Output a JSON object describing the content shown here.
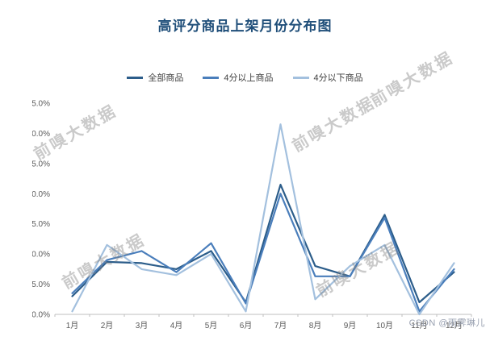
{
  "page": {
    "watermark_text": "前嗅大数据",
    "credit_text": "CSDN @雨霁琳儿",
    "background_color": "#ffffff",
    "title_color": "#1f4e79"
  },
  "chart_data": {
    "type": "line",
    "title": "高评分商品上架月份分布图",
    "categories": [
      "1月",
      "2月",
      "3月",
      "4月",
      "5月",
      "6月",
      "7月",
      "8月",
      "9月",
      "10月",
      "11月",
      "12月"
    ],
    "series": [
      {
        "name": "全部商品",
        "color": "#2c5d8a",
        "values": [
          3.0,
          8.7,
          8.5,
          7.5,
          10.5,
          2.0,
          21.5,
          8.0,
          6.3,
          16.5,
          2.0,
          7.0
        ]
      },
      {
        "name": "4分以上商品",
        "color": "#4a7ebb",
        "values": [
          3.5,
          9.0,
          10.5,
          7.0,
          11.8,
          1.8,
          20.0,
          6.3,
          6.3,
          16.0,
          0.5,
          7.5
        ]
      },
      {
        "name": "4分以下商品",
        "color": "#a3c0de",
        "values": [
          0.5,
          11.5,
          7.5,
          6.5,
          10.0,
          0.5,
          31.5,
          2.5,
          8.0,
          11.5,
          0.0,
          8.5
        ]
      }
    ],
    "xlabel": "",
    "ylabel": "",
    "ylim": [
      0,
      35
    ],
    "ytick_step": 5,
    "ytick_format": "percent_one_decimal",
    "grid": false,
    "legend_position": "top"
  }
}
